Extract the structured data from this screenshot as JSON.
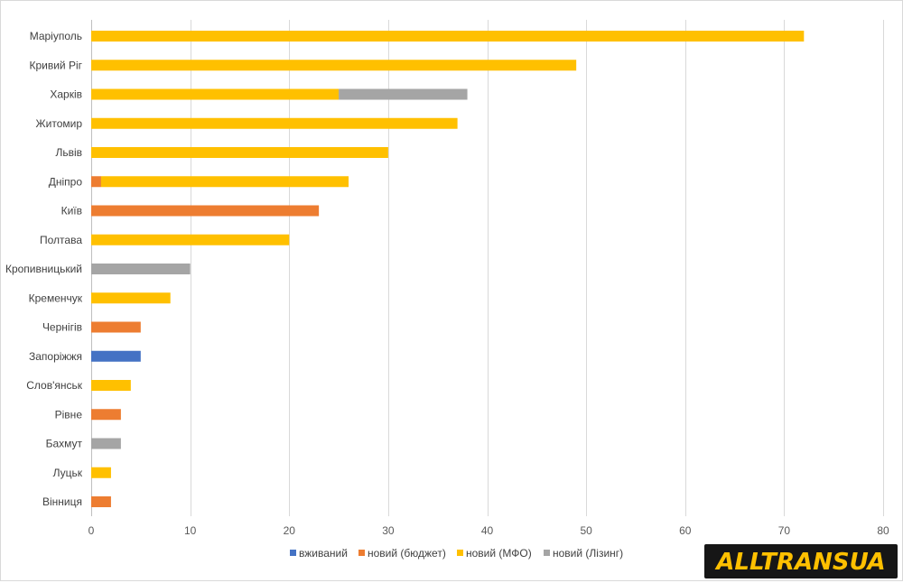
{
  "chart_data": {
    "type": "bar",
    "orientation": "horizontal",
    "stacked": true,
    "title": "",
    "xlabel": "",
    "ylabel": "",
    "xlim": [
      0,
      80
    ],
    "ticks": [
      0,
      10,
      20,
      30,
      40,
      50,
      60,
      70,
      80
    ],
    "grid": true,
    "legend_position": "bottom",
    "categories": [
      "Маріуполь",
      "Кривий Ріг",
      "Харків",
      "Житомир",
      "Львів",
      "Дніпро",
      "Київ",
      "Полтава",
      "Кропивницький",
      "Кременчук",
      "Чернігів",
      "Запоріжжя",
      "Слов'янськ",
      "Рівне",
      "Бахмут",
      "Луцьк",
      "Вінниця"
    ],
    "series": [
      {
        "name": "вживаний",
        "color": "#4472c4",
        "values": [
          0,
          0,
          0,
          0,
          0,
          0,
          0,
          0,
          0,
          0,
          0,
          5,
          0,
          0,
          0,
          0,
          0
        ]
      },
      {
        "name": "новий (бюджет)",
        "color": "#ed7d31",
        "values": [
          0,
          0,
          0,
          0,
          0,
          1,
          23,
          0,
          0,
          0,
          5,
          0,
          0,
          3,
          0,
          0,
          2
        ]
      },
      {
        "name": "новий (МФО)",
        "color": "#ffc000",
        "values": [
          72,
          49,
          25,
          37,
          30,
          25,
          0,
          20,
          0,
          8,
          0,
          0,
          4,
          0,
          0,
          2,
          0
        ]
      },
      {
        "name": "новий (Лізинг)",
        "color": "#a5a5a5",
        "values": [
          0,
          0,
          13,
          0,
          0,
          0,
          0,
          0,
          10,
          0,
          0,
          0,
          0,
          0,
          3,
          0,
          0
        ]
      }
    ]
  },
  "logo": {
    "text": "ALLTRANSUA",
    "color": "#ffc000"
  }
}
